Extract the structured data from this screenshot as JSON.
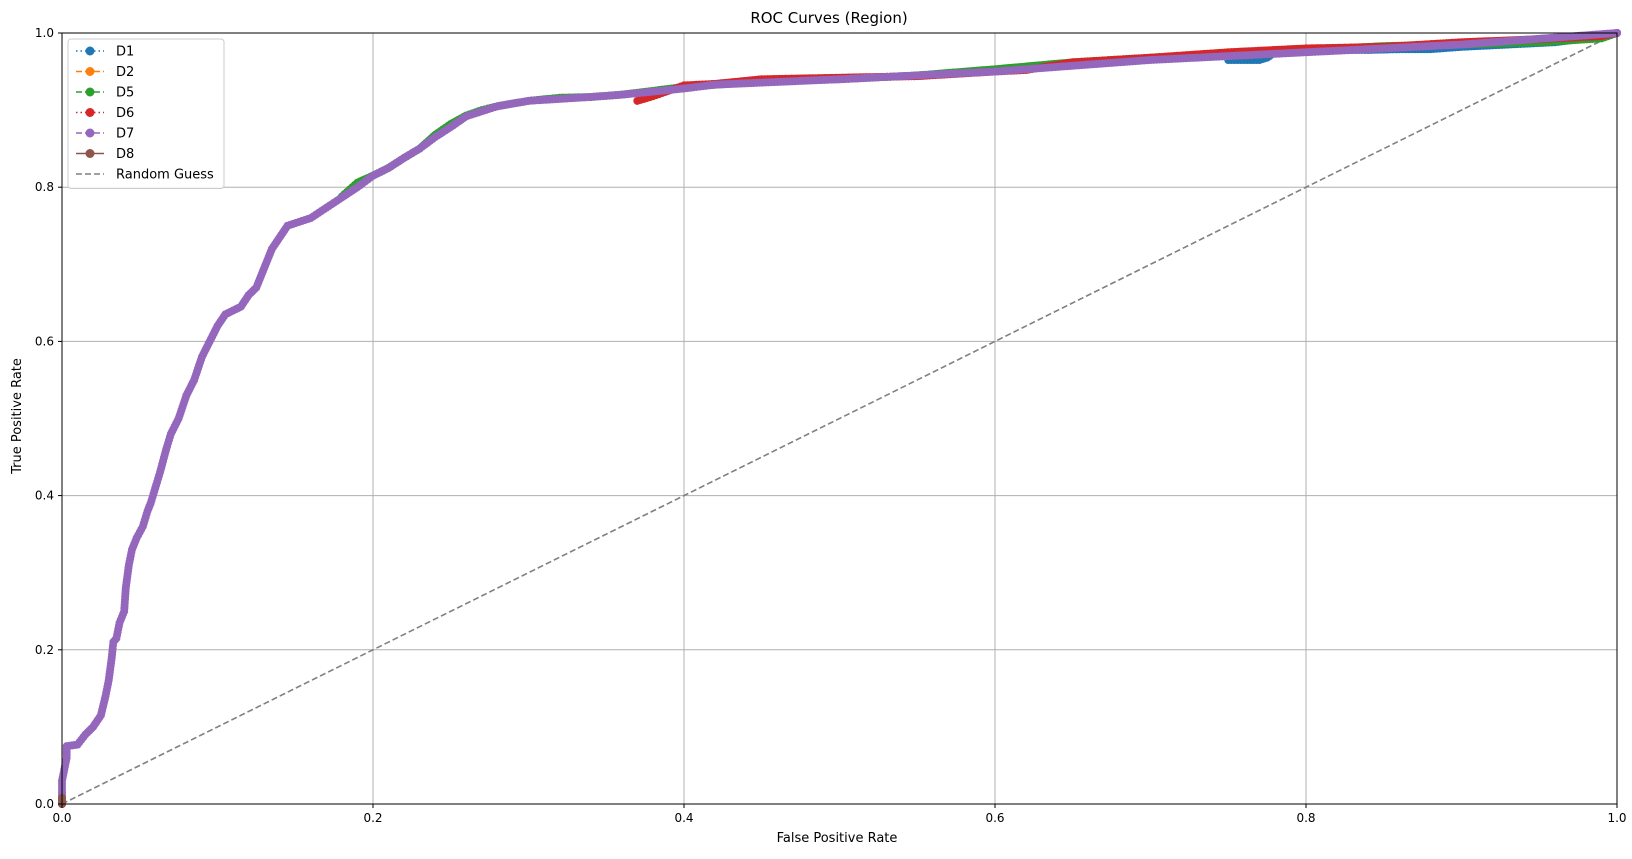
{
  "chart_data": {
    "type": "line",
    "title": "ROC Curves (Region)",
    "xlabel": "False Positive Rate",
    "ylabel": "True Positive Rate",
    "xlim": [
      0,
      1
    ],
    "ylim": [
      0,
      1
    ],
    "xticks": [
      "0.0",
      "0.2",
      "0.4",
      "0.6",
      "0.8",
      "1.0"
    ],
    "yticks": [
      "0.0",
      "0.2",
      "0.4",
      "0.6",
      "0.8",
      "1.0"
    ],
    "grid": true,
    "legend_position": "top-left",
    "series": [
      {
        "name": "D1",
        "color": "#1f77b4",
        "linestyle": "dotted",
        "marker": true,
        "points": [
          [
            0.75,
            0.965
          ],
          [
            0.76,
            0.965
          ],
          [
            0.77,
            0.965
          ],
          [
            0.775,
            0.968
          ],
          [
            0.78,
            0.975
          ],
          [
            0.8,
            0.978
          ],
          [
            0.82,
            0.978
          ],
          [
            0.84,
            0.978
          ],
          [
            0.86,
            0.979
          ],
          [
            0.88,
            0.979
          ],
          [
            0.9,
            0.982
          ],
          [
            0.92,
            0.984
          ],
          [
            0.94,
            0.986
          ],
          [
            0.96,
            0.988
          ],
          [
            0.98,
            0.993
          ],
          [
            1.0,
            1.0
          ]
        ]
      },
      {
        "name": "D2",
        "color": "#ff7f0e",
        "linestyle": "dashed",
        "marker": true,
        "points": [
          [
            0.0,
            0.0
          ],
          [
            0.0,
            0.005
          ]
        ]
      },
      {
        "name": "D5",
        "color": "#2ca02c",
        "linestyle": "dashed",
        "marker": true,
        "points": [
          [
            0.18,
            0.788
          ],
          [
            0.185,
            0.797
          ],
          [
            0.19,
            0.806
          ],
          [
            0.2,
            0.815
          ],
          [
            0.21,
            0.825
          ],
          [
            0.22,
            0.838
          ],
          [
            0.23,
            0.85
          ],
          [
            0.24,
            0.868
          ],
          [
            0.25,
            0.882
          ],
          [
            0.26,
            0.893
          ],
          [
            0.27,
            0.9
          ],
          [
            0.28,
            0.905
          ],
          [
            0.3,
            0.912
          ],
          [
            0.32,
            0.916
          ],
          [
            0.34,
            0.917
          ],
          [
            0.36,
            0.92
          ],
          [
            0.38,
            0.925
          ],
          [
            0.4,
            0.93
          ],
          [
            0.45,
            0.937
          ],
          [
            0.5,
            0.94
          ],
          [
            0.55,
            0.945
          ],
          [
            0.6,
            0.953
          ],
          [
            0.65,
            0.962
          ],
          [
            0.7,
            0.968
          ],
          [
            0.75,
            0.972
          ],
          [
            0.8,
            0.978
          ],
          [
            0.85,
            0.983
          ],
          [
            0.9,
            0.985
          ],
          [
            0.95,
            0.988
          ],
          [
            0.99,
            0.993
          ],
          [
            1.0,
            1.0
          ]
        ]
      },
      {
        "name": "D6",
        "color": "#d62728",
        "linestyle": "dotted",
        "marker": true,
        "points": [
          [
            0.37,
            0.912
          ],
          [
            0.38,
            0.918
          ],
          [
            0.39,
            0.925
          ],
          [
            0.4,
            0.932
          ],
          [
            0.42,
            0.934
          ],
          [
            0.45,
            0.94
          ],
          [
            0.5,
            0.942
          ],
          [
            0.55,
            0.944
          ],
          [
            0.6,
            0.95
          ],
          [
            0.62,
            0.952
          ],
          [
            0.65,
            0.962
          ],
          [
            0.7,
            0.968
          ],
          [
            0.75,
            0.975
          ],
          [
            0.8,
            0.98
          ],
          [
            0.85,
            0.982
          ],
          [
            0.9,
            0.988
          ],
          [
            0.95,
            0.992
          ],
          [
            0.99,
            0.996
          ],
          [
            1.0,
            1.0
          ]
        ]
      },
      {
        "name": "D7",
        "color": "#9467bd",
        "linestyle": "dashed",
        "marker": true,
        "points": [
          [
            0.0,
            0.0
          ],
          [
            0.0,
            0.03
          ],
          [
            0.003,
            0.06
          ],
          [
            0.003,
            0.075
          ],
          [
            0.01,
            0.077
          ],
          [
            0.015,
            0.09
          ],
          [
            0.02,
            0.1
          ],
          [
            0.025,
            0.115
          ],
          [
            0.028,
            0.14
          ],
          [
            0.03,
            0.16
          ],
          [
            0.032,
            0.19
          ],
          [
            0.033,
            0.21
          ],
          [
            0.035,
            0.215
          ],
          [
            0.037,
            0.235
          ],
          [
            0.04,
            0.25
          ],
          [
            0.041,
            0.28
          ],
          [
            0.043,
            0.31
          ],
          [
            0.045,
            0.33
          ],
          [
            0.048,
            0.345
          ],
          [
            0.052,
            0.36
          ],
          [
            0.055,
            0.38
          ],
          [
            0.057,
            0.39
          ],
          [
            0.06,
            0.41
          ],
          [
            0.063,
            0.43
          ],
          [
            0.067,
            0.46
          ],
          [
            0.07,
            0.48
          ],
          [
            0.075,
            0.5
          ],
          [
            0.08,
            0.53
          ],
          [
            0.085,
            0.55
          ],
          [
            0.09,
            0.58
          ],
          [
            0.095,
            0.6
          ],
          [
            0.1,
            0.62
          ],
          [
            0.105,
            0.635
          ],
          [
            0.115,
            0.645
          ],
          [
            0.12,
            0.66
          ],
          [
            0.125,
            0.67
          ],
          [
            0.13,
            0.695
          ],
          [
            0.135,
            0.72
          ],
          [
            0.14,
            0.735
          ],
          [
            0.145,
            0.75
          ],
          [
            0.16,
            0.76
          ],
          [
            0.175,
            0.78
          ],
          [
            0.19,
            0.8
          ],
          [
            0.2,
            0.815
          ],
          [
            0.21,
            0.825
          ],
          [
            0.22,
            0.838
          ],
          [
            0.23,
            0.85
          ],
          [
            0.24,
            0.865
          ],
          [
            0.25,
            0.878
          ],
          [
            0.26,
            0.892
          ],
          [
            0.28,
            0.905
          ],
          [
            0.3,
            0.912
          ],
          [
            0.34,
            0.917
          ],
          [
            0.36,
            0.92
          ],
          [
            0.4,
            0.928
          ],
          [
            0.42,
            0.933
          ],
          [
            0.5,
            0.94
          ],
          [
            0.6,
            0.95
          ],
          [
            0.7,
            0.965
          ],
          [
            0.8,
            0.975
          ],
          [
            0.9,
            0.985
          ],
          [
            1.0,
            1.0
          ]
        ]
      },
      {
        "name": "D8",
        "color": "#8c564b",
        "linestyle": "solid",
        "marker": true,
        "points": [
          [
            0.0,
            0.0
          ],
          [
            0.0,
            0.008
          ]
        ]
      }
    ],
    "reference_line": {
      "name": "Random Guess",
      "color": "#808080",
      "linestyle": "dashed",
      "points": [
        [
          0,
          0
        ],
        [
          1,
          1
        ]
      ]
    }
  }
}
